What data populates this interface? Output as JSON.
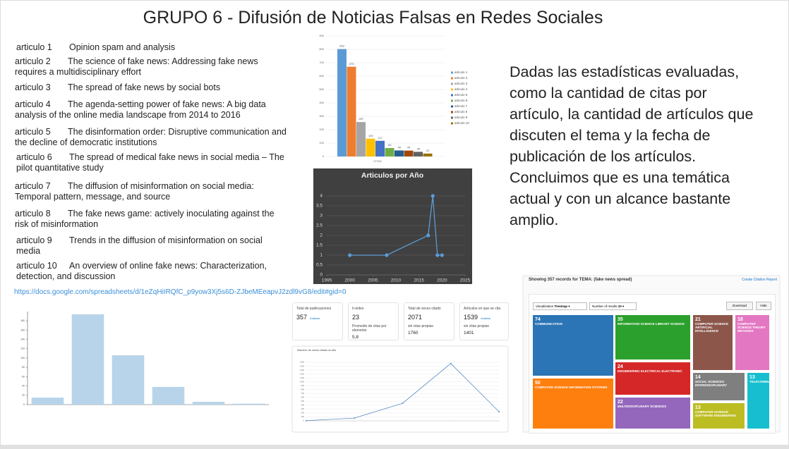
{
  "title": "GRUPO 6 - Difusión de Noticias Falsas en Redes Sociales",
  "articles": [
    {
      "number": "articulo 1",
      "title": "Opinion spam and analysis"
    },
    {
      "number": "articulo 2",
      "title": "The science of fake news: Addressing fake news requires a multidisciplinary effort"
    },
    {
      "number": "articulo 3",
      "title": "The spread of fake news by social bots"
    },
    {
      "number": "articulo 4",
      "title": "The agenda-setting power of fake news: A big data analysis of the online media landscape from 2014 to 2016"
    },
    {
      "number": "articulo 5",
      "title": "The disinformation order: Disruptive communication and the decline of democratic institutions"
    },
    {
      "number": "articulo 6",
      "title": "The spread of medical fake news in social media – The pilot quantitative study"
    },
    {
      "number": "articulo 7",
      "title": "The diffusion of misinformation on social media: Temporal pattern, message, and source"
    },
    {
      "number": "articulo 8",
      "title": "The fake news game: actively inoculating against the risk of misinformation"
    },
    {
      "number": "articulo 9",
      "title": "Trends in the diffusion of misinformation on social media"
    },
    {
      "number": "articulo 10",
      "title": "An overview of online fake news: Characterization, detection, and discussion"
    }
  ],
  "link": "https://docs.google.com/spreadsheets/d/1eZqHiIRQfC_p9yow3Xj5s6D-ZJbeMEeapvJ2zdl9vG8/edit#gid=0",
  "conclusion": [
    "Dadas las estadísticas evaluadas, como la cantidad de citas por artículo, la cantidad de artículos que discuten el tema y la fecha de publicación de los artículos.",
    "Concluimos que es una temática actual y con un alcance bastante amplio."
  ],
  "stats": [
    {
      "label": "Total de publicaciones",
      "value": 357,
      "link": "Analizar"
    },
    {
      "label": "h-index",
      "value": 23,
      "sub_label": "Promedio de citas por elemento",
      "sub_value": "5,8"
    },
    {
      "label": "Total de veces citado",
      "value": 2071,
      "sub_label": "sin citas propias",
      "sub_value": 1760
    },
    {
      "label": "Artículos en que se cita",
      "value": 1539,
      "link": "Analizar",
      "sub_label": "sin citas propias",
      "sub_value": 1401
    }
  ],
  "treemap_panel": {
    "header": "Showing 357 records for TEMA: (fake news spread)",
    "report": "Create Citation Report",
    "visualization_label": "Visualization",
    "visualization": "Treemap",
    "results_label": "Number of results",
    "results": 10,
    "download": "Download",
    "hide": "Hide"
  },
  "chart_data": [
    {
      "type": "grouped-bar",
      "categories": [
        "CITAS"
      ],
      "ylim": [
        0,
        900
      ],
      "yticks": [
        0,
        100,
        200,
        300,
        400,
        500,
        600,
        700,
        800,
        900
      ],
      "grid": true,
      "legend": "right",
      "series": [
        {
          "name": "articulo 1",
          "color": "#5b9bd5",
          "values": [
            802
          ]
        },
        {
          "name": "articulo 2",
          "color": "#ed7d31",
          "values": [
            670
          ]
        },
        {
          "name": "articulo 3",
          "color": "#a5a5a5",
          "values": [
            257
          ]
        },
        {
          "name": "articulo 4",
          "color": "#ffc000",
          "values": [
            133
          ]
        },
        {
          "name": "articulo 5",
          "color": "#4472c4",
          "values": [
            117
          ]
        },
        {
          "name": "articulo 6",
          "color": "#70ad47",
          "values": [
            63
          ]
        },
        {
          "name": "articulo 7",
          "color": "#255e91",
          "values": [
            45
          ]
        },
        {
          "name": "articulo 8",
          "color": "#9e480e",
          "values": [
            44
          ]
        },
        {
          "name": "articulo 9",
          "color": "#636363",
          "values": [
            35
          ]
        },
        {
          "name": "articulo 10",
          "color": "#997300",
          "values": [
            22
          ]
        }
      ]
    },
    {
      "type": "line",
      "title": "Articulos por Año",
      "x": [
        2000,
        2008,
        2017,
        2018,
        2019,
        2020
      ],
      "values": [
        1,
        1,
        2,
        4,
        1,
        1
      ],
      "color": "#5b9bd5",
      "xlim": [
        1995,
        2025
      ],
      "xticks": [
        1995,
        2000,
        2005,
        2010,
        2015,
        2020,
        2025
      ],
      "ylim": [
        0,
        4
      ],
      "yticks": [
        0,
        0.5,
        1,
        1.5,
        2,
        2.5,
        3,
        3.5,
        4
      ],
      "grid": true
    },
    {
      "type": "bar",
      "categories": [
        null,
        null,
        null,
        null,
        null,
        null
      ],
      "values": [
        15,
        194,
        106,
        38,
        6,
        2
      ],
      "color": "#b8d4ea",
      "ylim": [
        0,
        200
      ],
      "yticks": [
        0,
        20,
        40,
        60,
        80,
        100,
        120,
        140,
        160,
        180
      ],
      "grid": false
    },
    {
      "type": "line",
      "title": "Número de veces citado al año",
      "categories": [
        null,
        null,
        null,
        null,
        null
      ],
      "values": [
        5,
        70,
        450,
        1470,
        235
      ],
      "color": "#5b8fc7",
      "ylim": [
        0,
        1500
      ],
      "yticks": [
        0,
        100,
        200,
        300,
        400,
        500,
        600,
        700,
        800,
        900,
        1000,
        1100,
        1200,
        1300,
        1400,
        1500
      ],
      "grid": true
    },
    {
      "type": "treemap",
      "categories": [
        "COMMUNICATION",
        "INFORMATION SCIENCE LIBRARY SCIENCE",
        "COMPUTER SCIENCE ARTIFICIAL INTELLIGENCE",
        "COMPUTER SCIENCE THEORY METHODS",
        "COMPUTER SCIENCE INFORMATION SYSTEMS",
        "ENGINEERING ELECTRICAL ELECTRONIC",
        "MULTIDISCIPLINARY SCIENCES",
        "SOCIAL SCIENCES INTERDISCIPLINARY",
        "COMPUTER SCIENCE SOFTWARE ENGINEERING",
        "TELECOMMUNICATIONS"
      ],
      "values": [
        74,
        35,
        21,
        18,
        50,
        24,
        22,
        14,
        13,
        13
      ],
      "colors": [
        "#2b74b5",
        "#2ca02c",
        "#8c564b",
        "#e377c2",
        "#ff7f0e",
        "#d62728",
        "#9467bd",
        "#7f7f7f",
        "#bcbd22",
        "#17becf"
      ]
    }
  ]
}
